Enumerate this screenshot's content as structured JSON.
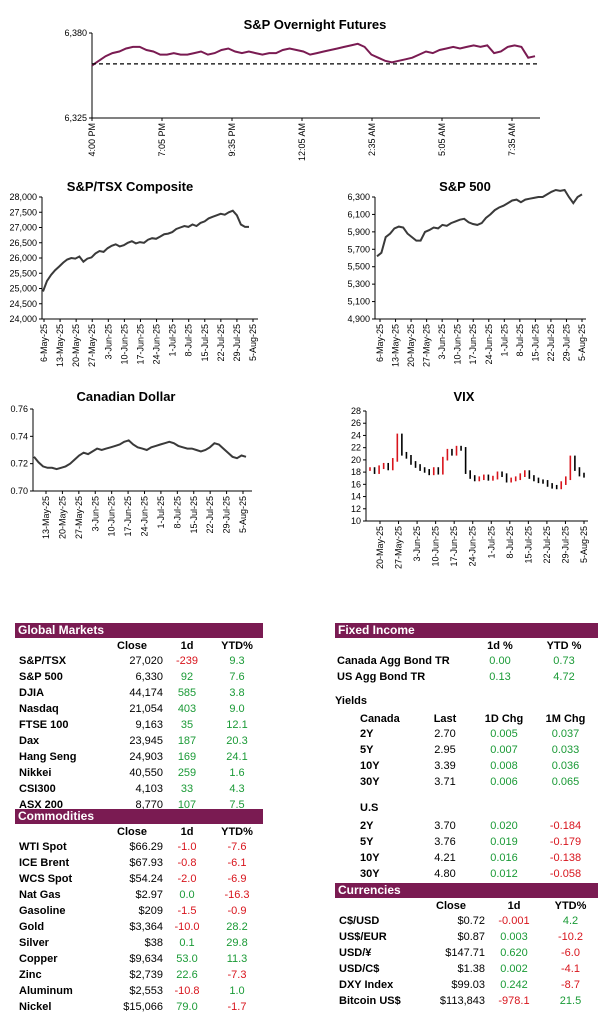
{
  "colors": {
    "accent": "#7a1b52",
    "positive": "#1a9a36",
    "negative": "#d8141c",
    "line_dark": "#3a3a3a",
    "vix_up": "#d8141c",
    "vix_down": "#000000"
  },
  "chart_data": [
    {
      "id": "futures",
      "type": "line",
      "title": "S&P Overnight Futures",
      "ylim": [
        6325,
        6380
      ],
      "yticks": [
        "6,380",
        "6,325"
      ],
      "xticks": [
        "4:00 PM",
        "7:05 PM",
        "9:35 PM",
        "12:05 AM",
        "2:35 AM",
        "5:05 AM",
        "7:35 AM"
      ],
      "reference_line": 6360,
      "values": [
        6359,
        6362,
        6365,
        6367,
        6368,
        6370,
        6371,
        6371,
        6369,
        6368,
        6366,
        6366,
        6367,
        6366,
        6366,
        6367,
        6368,
        6366,
        6367,
        6369,
        6370,
        6368,
        6367,
        6368,
        6367,
        6366,
        6367,
        6367,
        6369,
        6370,
        6369,
        6368,
        6366,
        6367,
        6368,
        6369,
        6370,
        6371,
        6372,
        6373,
        6371,
        6366,
        6364,
        6362,
        6361,
        6362,
        6363,
        6364,
        6366,
        6368,
        6367,
        6369,
        6370,
        6371,
        6370,
        6371,
        6372,
        6371,
        6372,
        6367,
        6368,
        6371,
        6372,
        6371,
        6364,
        6365
      ]
    },
    {
      "id": "tsx",
      "type": "line",
      "title": "S&P/TSX Composite",
      "ylim": [
        24000,
        28000
      ],
      "yticks": [
        "28,000",
        "27,500",
        "27,000",
        "26,500",
        "26,000",
        "25,500",
        "25,000",
        "24,500",
        "24,000"
      ],
      "xticks": [
        "6-May-25",
        "13-May-25",
        "20-May-25",
        "27-May-25",
        "3-Jun-25",
        "10-Jun-25",
        "17-Jun-25",
        "24-Jun-25",
        "1-Jul-25",
        "8-Jul-25",
        "15-Jul-25",
        "22-Jul-25",
        "29-Jul-25",
        "5-Aug-25"
      ],
      "values": [
        24900,
        25250,
        25450,
        25600,
        25720,
        25850,
        25950,
        26000,
        25980,
        26050,
        25880,
        25980,
        26020,
        26150,
        26230,
        26200,
        26320,
        26400,
        26450,
        26380,
        26420,
        26500,
        26550,
        26480,
        26520,
        26500,
        26600,
        26650,
        26630,
        26700,
        26780,
        26800,
        26850,
        26950,
        27000,
        27050,
        27020,
        27100,
        27050,
        27150,
        27200,
        27300,
        27350,
        27400,
        27450,
        27420,
        27500,
        27550,
        27400,
        27100,
        27020,
        27020
      ]
    },
    {
      "id": "spx",
      "type": "line",
      "title": "S&P 500",
      "ylim": [
        4900,
        6300
      ],
      "yticks": [
        "6,300",
        "6,100",
        "5,900",
        "5,700",
        "5,500",
        "5,300",
        "5,100",
        "4,900"
      ],
      "xticks": [
        "6-May-25",
        "13-May-25",
        "20-May-25",
        "27-May-25",
        "3-Jun-25",
        "10-Jun-25",
        "17-Jun-25",
        "24-Jun-25",
        "1-Jul-25",
        "8-Jul-25",
        "15-Jul-25",
        "22-Jul-25",
        "29-Jul-25",
        "5-Aug-25"
      ],
      "values": [
        5620,
        5660,
        5840,
        5880,
        5940,
        5960,
        5950,
        5880,
        5840,
        5800,
        5800,
        5900,
        5920,
        5950,
        5940,
        5980,
        5970,
        6000,
        6020,
        6040,
        6050,
        6010,
        5990,
        5980,
        6000,
        6060,
        6100,
        6150,
        6180,
        6200,
        6230,
        6260,
        6270,
        6240,
        6270,
        6280,
        6290,
        6300,
        6300,
        6330,
        6360,
        6380,
        6370,
        6380,
        6300,
        6230,
        6300,
        6330
      ]
    },
    {
      "id": "cad",
      "type": "line",
      "title": "Canadian Dollar",
      "ylim": [
        0.7,
        0.76
      ],
      "yticks": [
        "0.76",
        "0.74",
        "0.72",
        "0.70"
      ],
      "xticks": [
        "13-May-25",
        "20-May-25",
        "27-May-25",
        "3-Jun-25",
        "10-Jun-25",
        "17-Jun-25",
        "24-Jun-25",
        "1-Jul-25",
        "8-Jul-25",
        "15-Jul-25",
        "22-Jul-25",
        "29-Jul-25",
        "5-Aug-25"
      ],
      "values": [
        0.725,
        0.721,
        0.718,
        0.717,
        0.717,
        0.716,
        0.717,
        0.718,
        0.72,
        0.723,
        0.726,
        0.728,
        0.727,
        0.729,
        0.731,
        0.73,
        0.731,
        0.732,
        0.733,
        0.734,
        0.736,
        0.737,
        0.734,
        0.732,
        0.731,
        0.73,
        0.732,
        0.733,
        0.734,
        0.735,
        0.736,
        0.735,
        0.733,
        0.732,
        0.731,
        0.731,
        0.73,
        0.729,
        0.73,
        0.732,
        0.735,
        0.734,
        0.731,
        0.728,
        0.725,
        0.724,
        0.726,
        0.725
      ]
    },
    {
      "id": "vix",
      "type": "line",
      "title": "VIX",
      "ylim": [
        10,
        28
      ],
      "yticks": [
        "28",
        "26",
        "24",
        "22",
        "20",
        "18",
        "16",
        "14",
        "12",
        "10"
      ],
      "xticks": [
        "20-May-25",
        "27-May-25",
        "3-Jun-25",
        "10-Jun-25",
        "17-Jun-25",
        "24-Jun-25",
        "1-Jul-25",
        "8-Jul-25",
        "15-Jul-25",
        "22-Jul-25",
        "29-Jul-25",
        "5-Aug-25"
      ],
      "values": [
        18.5,
        18.0,
        18.8,
        19.2,
        18.6,
        20.0,
        24.0,
        21.0,
        20.5,
        19.5,
        19.0,
        18.5,
        18.2,
        17.8,
        18.5,
        17.9,
        20.2,
        21.5,
        21.0,
        22.0,
        21.8,
        18.0,
        17.2,
        16.8,
        17.0,
        17.3,
        16.9,
        17.1,
        17.8,
        17.5,
        16.6,
        16.8,
        17.0,
        17.5,
        18.0,
        17.2,
        16.8,
        16.5,
        16.4,
        15.9,
        15.6,
        15.5,
        16.2,
        17.0,
        20.4,
        18.5,
        17.6,
        17.4
      ]
    }
  ],
  "global_markets": {
    "title": "Global Markets",
    "headers": [
      "Close",
      "1d",
      "YTD%"
    ],
    "rows": [
      {
        "name": "S&P/TSX",
        "close": "27,020",
        "d1": "-239",
        "ytd": "9.3"
      },
      {
        "name": "S&P 500",
        "close": "6,330",
        "d1": "92",
        "ytd": "7.6"
      },
      {
        "name": "DJIA",
        "close": "44,174",
        "d1": "585",
        "ytd": "3.8"
      },
      {
        "name": "Nasdaq",
        "close": "21,054",
        "d1": "403",
        "ytd": "9.0"
      },
      {
        "name": "FTSE 100",
        "close": "9,163",
        "d1": "35",
        "ytd": "12.1"
      },
      {
        "name": "Dax",
        "close": "23,945",
        "d1": "187",
        "ytd": "20.3"
      },
      {
        "name": "Hang Seng",
        "close": "24,903",
        "d1": "169",
        "ytd": "24.1"
      },
      {
        "name": "Nikkei",
        "close": "40,550",
        "d1": "259",
        "ytd": "1.6"
      },
      {
        "name": "CSI300",
        "close": "4,103",
        "d1": "33",
        "ytd": "4.3"
      },
      {
        "name": "ASX 200",
        "close": "8,770",
        "d1": "107",
        "ytd": "7.5"
      }
    ]
  },
  "commodities": {
    "title": "Commodities",
    "headers": [
      "Close",
      "1d",
      "YTD%"
    ],
    "rows": [
      {
        "name": "WTI Spot",
        "close": "$66.29",
        "d1": "-1.0",
        "ytd": "-7.6"
      },
      {
        "name": "ICE Brent",
        "close": "$67.93",
        "d1": "-0.8",
        "ytd": "-6.1"
      },
      {
        "name": "WCS Spot",
        "close": "$54.24",
        "d1": "-2.0",
        "ytd": "-6.9"
      },
      {
        "name": "Nat Gas",
        "close": "$2.97",
        "d1": "0.0",
        "ytd": "-16.3"
      },
      {
        "name": "Gasoline",
        "close": "$209",
        "d1": "-1.5",
        "ytd": "-0.9"
      },
      {
        "name": "Gold",
        "close": "$3,364",
        "d1": "-10.0",
        "ytd": "28.2"
      },
      {
        "name": "Silver",
        "close": "$38",
        "d1": "0.1",
        "ytd": "29.8"
      },
      {
        "name": "Copper",
        "close": "$9,634",
        "d1": "53.0",
        "ytd": "11.3"
      },
      {
        "name": "Zinc",
        "close": "$2,739",
        "d1": "22.6",
        "ytd": "-7.3"
      },
      {
        "name": "Aluminum",
        "close": "$2,553",
        "d1": "-10.8",
        "ytd": "1.0"
      },
      {
        "name": "Nickel",
        "close": "$15,066",
        "d1": "79.0",
        "ytd": "-1.7"
      }
    ]
  },
  "fixed_income": {
    "title": "Fixed Income",
    "headers": [
      "1d %",
      "YTD %"
    ],
    "rows": [
      {
        "name": "Canada Agg Bond TR",
        "d1": "0.00",
        "ytd": "0.73"
      },
      {
        "name": "US Agg Bond TR",
        "d1": "0.13",
        "ytd": "4.72"
      }
    ],
    "yields_label": "Yields",
    "yield_headers": [
      "Last",
      "1D Chg",
      "1M Chg"
    ],
    "canada_label": "Canada",
    "canada": [
      {
        "name": "2Y",
        "last": "2.70",
        "d1": "0.005",
        "m1": "0.037"
      },
      {
        "name": "5Y",
        "last": "2.95",
        "d1": "0.007",
        "m1": "0.033"
      },
      {
        "name": "10Y",
        "last": "3.39",
        "d1": "0.008",
        "m1": "0.036"
      },
      {
        "name": "30Y",
        "last": "3.71",
        "d1": "0.006",
        "m1": "0.065"
      }
    ],
    "us_label": "U.S",
    "us": [
      {
        "name": "2Y",
        "last": "3.70",
        "d1": "0.020",
        "m1": "-0.184"
      },
      {
        "name": "5Y",
        "last": "3.76",
        "d1": "0.019",
        "m1": "-0.179"
      },
      {
        "name": "10Y",
        "last": "4.21",
        "d1": "0.016",
        "m1": "-0.138"
      },
      {
        "name": "30Y",
        "last": "4.80",
        "d1": "0.012",
        "m1": "-0.058"
      }
    ]
  },
  "currencies": {
    "title": "Currencies",
    "headers": [
      "Close",
      "1d",
      "YTD%"
    ],
    "rows": [
      {
        "name": "C$/USD",
        "close": "$0.72",
        "d1": "-0.001",
        "ytd": "4.2"
      },
      {
        "name": "US$/EUR",
        "close": "$0.87",
        "d1": "0.003",
        "ytd": "-10.2"
      },
      {
        "name": "USD/¥",
        "close": "$147.71",
        "d1": "0.620",
        "ytd": "-6.0"
      },
      {
        "name": "USD/C$",
        "close": "$1.38",
        "d1": "0.002",
        "ytd": "-4.1"
      },
      {
        "name": "DXY Index",
        "close": "$99.03",
        "d1": "0.242",
        "ytd": "-8.7"
      },
      {
        "name": "Bitcoin US$",
        "close": "$113,843",
        "d1": "-978.1",
        "ytd": "21.5"
      }
    ]
  }
}
